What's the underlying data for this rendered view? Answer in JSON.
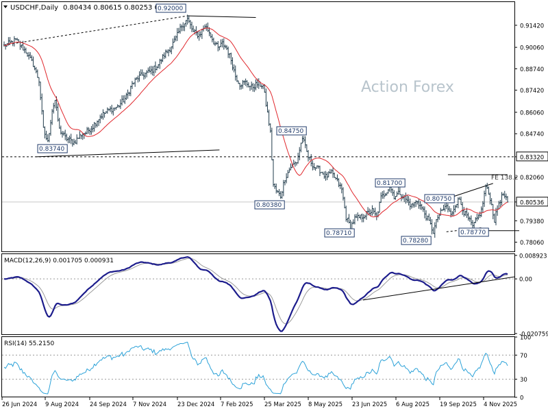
{
  "header": {
    "symbol_line": "USDCHF,Daily",
    "ohlc": "0.80434 0.80615 0.80253 0.80536",
    "watermark": "Action Forex"
  },
  "chart_data": [
    {
      "type": "ohlc",
      "panel": "price",
      "ylim": [
        0.7745,
        0.9285
      ],
      "y_ticks": [
        "0.91420",
        "0.90060",
        "0.88740",
        "0.87420",
        "0.86060",
        "0.84740",
        "0.83320",
        "0.82060",
        "0.80536",
        "0.79380",
        "0.78060"
      ],
      "y_tick_values": [
        0.9142,
        0.9006,
        0.8874,
        0.8742,
        0.8606,
        0.8474,
        0.8332,
        0.8206,
        0.80536,
        0.7938,
        0.7806
      ],
      "x_ticks": [
        "26 Jun 2024",
        "9 Aug 2024",
        "24 Sep 2024",
        "7 Nov 2024",
        "23 Dec 2024",
        "7 Feb 2025",
        "25 Mar 2025",
        "8 May 2025",
        "23 Jun 2025",
        "6 Aug 2025",
        "19 Sep 2025",
        "4 Nov 2025"
      ],
      "annotations": [
        {
          "label": "0.92000",
          "value": 0.92
        },
        {
          "label": "0.83740",
          "value": 0.8374
        },
        {
          "label": "0.84750",
          "value": 0.8475
        },
        {
          "label": "0.80380",
          "value": 0.8038
        },
        {
          "label": "0.78710",
          "value": 0.7871
        },
        {
          "label": "0.81700",
          "value": 0.817
        },
        {
          "label": "0.78280",
          "value": 0.7828
        },
        {
          "label": "0.80750",
          "value": 0.8075
        },
        {
          "label": "0.78770",
          "value": 0.7877
        },
        {
          "label": "FE 138.2",
          "value": 0.8222
        }
      ],
      "horizontal_level": {
        "label": "0.83320",
        "value": 0.8332
      },
      "last_price": {
        "label": "0.80536",
        "value": 0.80536
      },
      "path_points": [
        [
          0,
          0.9015
        ],
        [
          8,
          0.905
        ],
        [
          15,
          0.898
        ],
        [
          20,
          0.89
        ],
        [
          24,
          0.88
        ],
        [
          27,
          0.85
        ],
        [
          30,
          0.842
        ],
        [
          33,
          0.862
        ],
        [
          35,
          0.868
        ],
        [
          38,
          0.85
        ],
        [
          42,
          0.845
        ],
        [
          48,
          0.842
        ],
        [
          53,
          0.847
        ],
        [
          56,
          0.848
        ],
        [
          61,
          0.852
        ],
        [
          66,
          0.858
        ],
        [
          72,
          0.862
        ],
        [
          78,
          0.864
        ],
        [
          84,
          0.87
        ],
        [
          88,
          0.878
        ],
        [
          92,
          0.882
        ],
        [
          96,
          0.884
        ],
        [
          101,
          0.886
        ],
        [
          106,
          0.89
        ],
        [
          110,
          0.896
        ],
        [
          114,
          0.9
        ],
        [
          118,
          0.906
        ],
        [
          122,
          0.914
        ],
        [
          126,
          0.918
        ],
        [
          130,
          0.91
        ],
        [
          134,
          0.908
        ],
        [
          138,
          0.914
        ],
        [
          141,
          0.91
        ],
        [
          144,
          0.904
        ],
        [
          147,
          0.9
        ],
        [
          150,
          0.903
        ],
        [
          153,
          0.9
        ],
        [
          156,
          0.893
        ],
        [
          159,
          0.883
        ],
        [
          162,
          0.878
        ],
        [
          166,
          0.879
        ],
        [
          170,
          0.876
        ],
        [
          174,
          0.878
        ],
        [
          178,
          0.877
        ],
        [
          181,
          0.86
        ],
        [
          183,
          0.848
        ],
        [
          185,
          0.816
        ],
        [
          187,
          0.812
        ],
        [
          190,
          0.809
        ],
        [
          193,
          0.82
        ],
        [
          197,
          0.827
        ],
        [
          201,
          0.83
        ],
        [
          205,
          0.845
        ],
        [
          209,
          0.833
        ],
        [
          213,
          0.827
        ],
        [
          217,
          0.825
        ],
        [
          221,
          0.821
        ],
        [
          225,
          0.823
        ],
        [
          229,
          0.818
        ],
        [
          232,
          0.813
        ],
        [
          235,
          0.796
        ],
        [
          238,
          0.79
        ],
        [
          241,
          0.795
        ],
        [
          245,
          0.796
        ],
        [
          249,
          0.798
        ],
        [
          253,
          0.8
        ],
        [
          256,
          0.796
        ],
        [
          259,
          0.808
        ],
        [
          262,
          0.811
        ],
        [
          265,
          0.815
        ],
        [
          268,
          0.809
        ],
        [
          272,
          0.811
        ],
        [
          276,
          0.807
        ],
        [
          280,
          0.803
        ],
        [
          284,
          0.806
        ],
        [
          288,
          0.8
        ],
        [
          292,
          0.793
        ],
        [
          295,
          0.787
        ],
        [
          298,
          0.796
        ],
        [
          301,
          0.8
        ],
        [
          304,
          0.803
        ],
        [
          307,
          0.797
        ],
        [
          310,
          0.804
        ],
        [
          313,
          0.807
        ],
        [
          316,
          0.799
        ],
        [
          319,
          0.795
        ],
        [
          322,
          0.79
        ],
        [
          325,
          0.795
        ],
        [
          328,
          0.8
        ],
        [
          331,
          0.815
        ],
        [
          334,
          0.808
        ],
        [
          337,
          0.794
        ],
        [
          340,
          0.805
        ],
        [
          343,
          0.81
        ],
        [
          346,
          0.805
        ]
      ]
    },
    {
      "type": "line",
      "panel": "macd",
      "title": "MACD(12,26,9) 0.001705 0.000931",
      "ylim": [
        -0.0213,
        0.0094
      ],
      "y_ticks": [
        "0.008923",
        "0.00",
        "-0.020759"
      ],
      "y_tick_values": [
        0.008923,
        0.0,
        -0.020759
      ]
    },
    {
      "type": "line",
      "panel": "rsi",
      "title": "RSI(14) 55.2150",
      "ylim": [
        0,
        100
      ],
      "y_ticks": [
        "100",
        "70",
        "30",
        "0"
      ],
      "y_tick_values": [
        100,
        70,
        30,
        0
      ]
    }
  ]
}
